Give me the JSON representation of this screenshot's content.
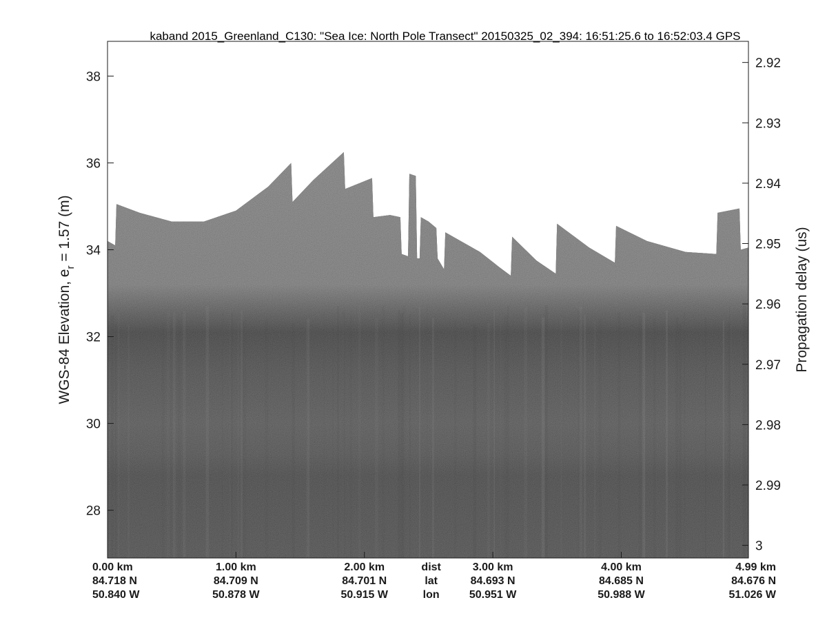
{
  "chart_data": {
    "type": "heatmap",
    "title": "kaband 2015_Greenland_C130: \"Sea Ice: North Pole Transect\"  20150325_02_394: 16:51:25.6 to 16:52:03.4 GPS",
    "ylabel_left": "WGS-84 Elevation, e",
    "ylabel_left_sub": "r",
    "ylabel_left_tail": " = 1.57 (m)",
    "ylabel_right": "Propagation delay (us)",
    "ylim_left": [
      26.9,
      38.8
    ],
    "yticks_left": [
      "28",
      "30",
      "32",
      "34",
      "36",
      "38"
    ],
    "ylim_right": [
      2.9165,
      3.0021
    ],
    "yticks_right": [
      "2.92",
      "2.93",
      "2.94",
      "2.95",
      "2.96",
      "2.97",
      "2.98",
      "2.99",
      "3"
    ],
    "xlim_km": [
      0,
      4.99
    ],
    "x_row_labels": [
      "dist",
      "lat",
      "lon"
    ],
    "x_ticks": [
      {
        "km": 0.0,
        "dist": "0.00 km",
        "lat": "84.718 N",
        "lon": "50.840 W"
      },
      {
        "km": 1.0,
        "dist": "1.00 km",
        "lat": "84.709 N",
        "lon": "50.878 W"
      },
      {
        "km": 2.0,
        "dist": "2.00 km",
        "lat": "84.701 N",
        "lon": "50.915 W"
      },
      {
        "km": 3.0,
        "dist": "3.00 km",
        "lat": "84.693 N",
        "lon": "50.951 W"
      },
      {
        "km": 4.0,
        "dist": "4.00 km",
        "lat": "84.685 N",
        "lon": "50.988 W"
      },
      {
        "km": 4.99,
        "dist": "4.99 km",
        "lat": "84.676 N",
        "lon": "51.026 W"
      }
    ],
    "data_top_edge_km_m": [
      [
        0.0,
        34.2
      ],
      [
        0.06,
        34.1
      ],
      [
        0.07,
        35.05
      ],
      [
        0.25,
        34.85
      ],
      [
        0.5,
        34.65
      ],
      [
        0.75,
        34.65
      ],
      [
        1.0,
        34.9
      ],
      [
        1.25,
        35.45
      ],
      [
        1.43,
        36.0
      ],
      [
        1.44,
        35.1
      ],
      [
        1.6,
        35.6
      ],
      [
        1.84,
        36.25
      ],
      [
        1.85,
        35.4
      ],
      [
        2.06,
        35.65
      ],
      [
        2.07,
        34.75
      ],
      [
        2.2,
        34.8
      ],
      [
        2.28,
        34.75
      ],
      [
        2.29,
        33.9
      ],
      [
        2.34,
        33.85
      ],
      [
        2.35,
        35.75
      ],
      [
        2.4,
        35.7
      ],
      [
        2.41,
        33.8
      ],
      [
        2.43,
        33.8
      ],
      [
        2.44,
        34.75
      ],
      [
        2.5,
        34.65
      ],
      [
        2.56,
        34.5
      ],
      [
        2.57,
        33.8
      ],
      [
        2.6,
        33.65
      ],
      [
        2.62,
        33.55
      ],
      [
        2.63,
        34.4
      ],
      [
        2.9,
        33.95
      ],
      [
        3.05,
        33.6
      ],
      [
        3.14,
        33.4
      ],
      [
        3.15,
        34.3
      ],
      [
        3.34,
        33.75
      ],
      [
        3.49,
        33.45
      ],
      [
        3.5,
        34.6
      ],
      [
        3.75,
        34.05
      ],
      [
        3.95,
        33.7
      ],
      [
        3.96,
        34.55
      ],
      [
        4.2,
        34.2
      ],
      [
        4.5,
        33.95
      ],
      [
        4.74,
        33.9
      ],
      [
        4.75,
        34.85
      ],
      [
        4.92,
        34.95
      ],
      [
        4.93,
        34.0
      ],
      [
        4.99,
        34.05
      ]
    ],
    "surface_elevation_m": 32.1,
    "grid": false,
    "colormap": "gray"
  }
}
